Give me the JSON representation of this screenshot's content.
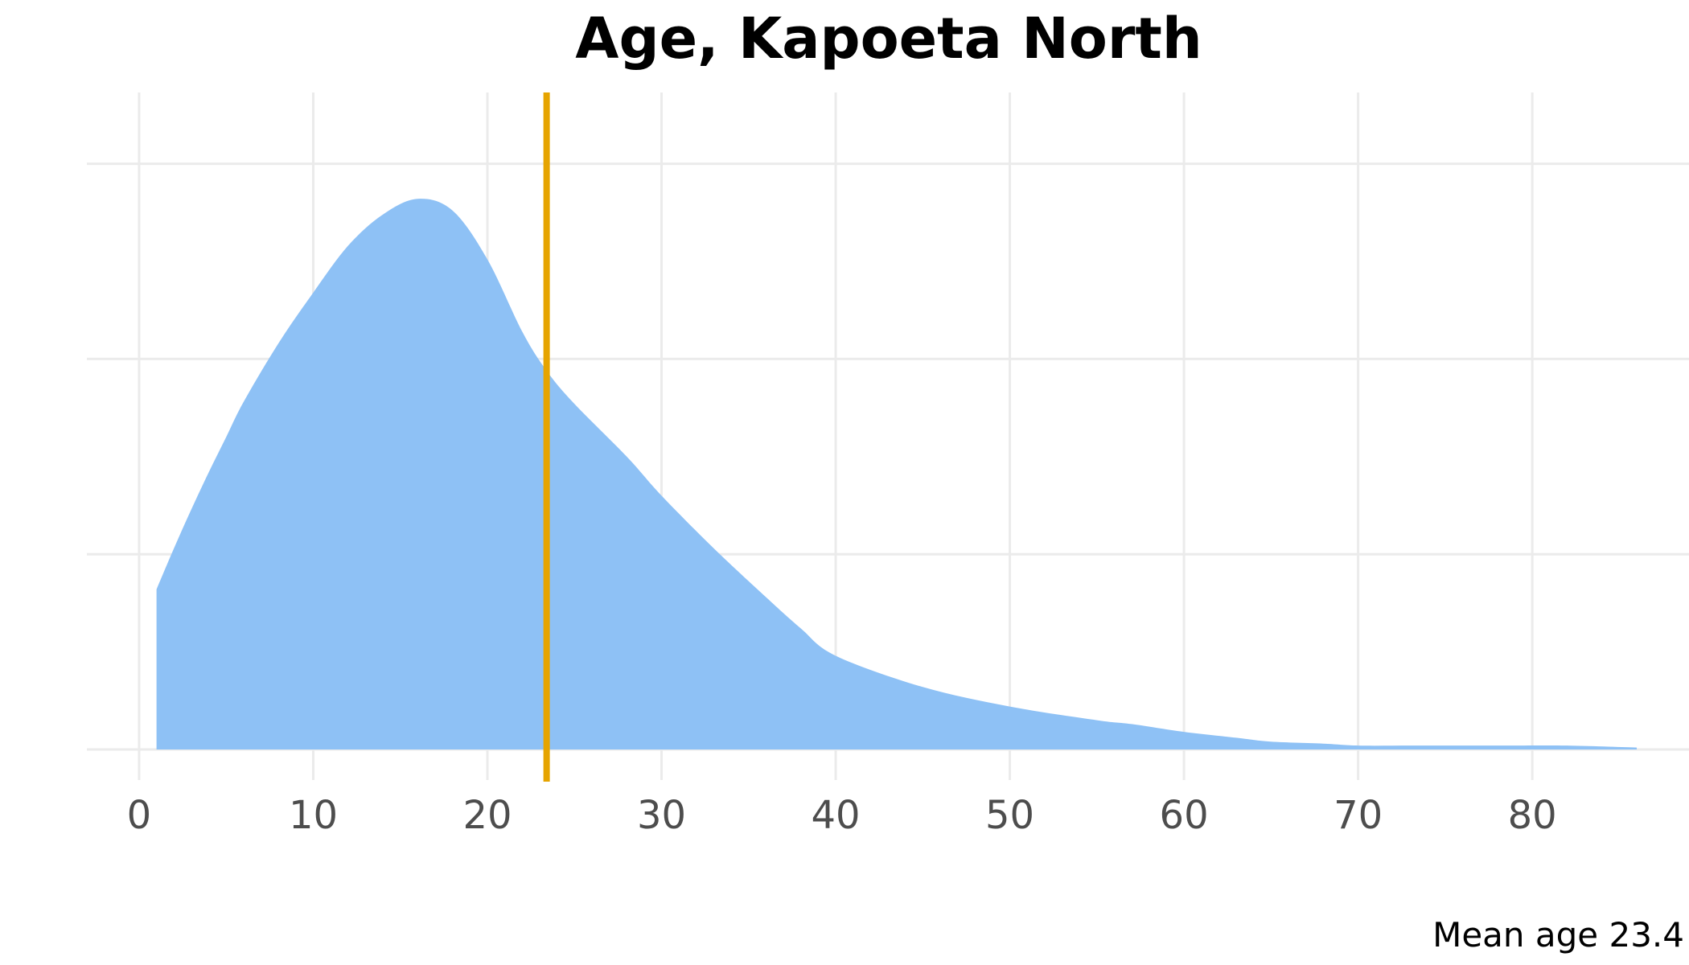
{
  "chart_data": {
    "type": "area",
    "title": "Age, Kapoeta North",
    "caption": "Mean age 23.4",
    "xlabel": "",
    "ylabel": "",
    "xlim": [
      -3,
      89
    ],
    "ylim": [
      0,
      0.032
    ],
    "x_ticks": [
      0,
      10,
      20,
      30,
      40,
      50,
      60,
      70,
      80
    ],
    "x_tick_labels": [
      "0",
      "10",
      "20",
      "30",
      "40",
      "50",
      "60",
      "70",
      "80"
    ],
    "y_gridlines": [
      0,
      0.01,
      0.02,
      0.03
    ],
    "grid": true,
    "legend": "none",
    "mean_age": 23.4,
    "series": [
      {
        "x": [
          1,
          2,
          3,
          4,
          5,
          6,
          8,
          10,
          12,
          14,
          16,
          18,
          20,
          22,
          23.4,
          25,
          28,
          30,
          33,
          36,
          38,
          40,
          45,
          50,
          55,
          57,
          60,
          63,
          65,
          68,
          70,
          73,
          76,
          79,
          82,
          86
        ],
        "y": [
          0.0082,
          0.0103,
          0.0123,
          0.0142,
          0.016,
          0.0178,
          0.0208,
          0.0234,
          0.0258,
          0.0274,
          0.0282,
          0.0276,
          0.0251,
          0.0214,
          0.0194,
          0.0177,
          0.015,
          0.013,
          0.0103,
          0.0078,
          0.0062,
          0.0048,
          0.0032,
          0.0022,
          0.0015,
          0.0013,
          0.0009,
          0.0006,
          0.0004,
          0.0003,
          0.0002,
          0.0002,
          0.0002,
          0.0002,
          0.0002,
          0.0001
        ]
      }
    ],
    "colors": {
      "fill": "#8ec1f5",
      "mean_line": "#e6a400",
      "grid": "#ebebeb",
      "tick_text": "#4d4d4d"
    }
  }
}
